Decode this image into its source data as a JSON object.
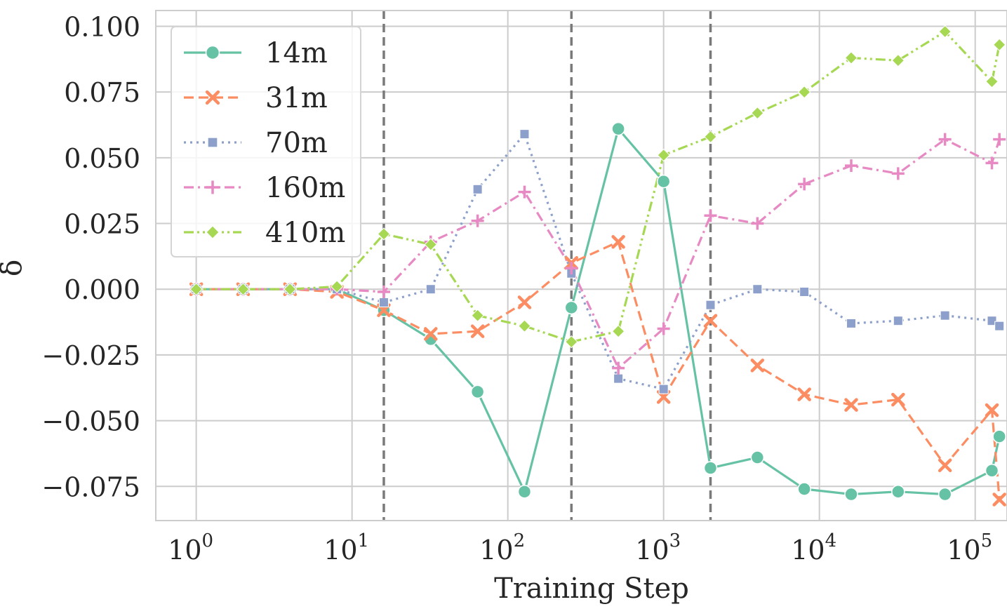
{
  "chart_data": {
    "type": "line",
    "title": "",
    "xlabel": "Training Step",
    "ylabel": "δ",
    "xscale": "log",
    "xlim": [
      0.55,
      160000
    ],
    "ylim": [
      -0.088,
      0.106
    ],
    "grid": true,
    "x_ticks": [
      {
        "base": "10",
        "exp": "0"
      },
      {
        "base": "10",
        "exp": "1"
      },
      {
        "base": "10",
        "exp": "2"
      },
      {
        "base": "10",
        "exp": "3"
      },
      {
        "base": "10",
        "exp": "4"
      },
      {
        "base": "10",
        "exp": "5"
      }
    ],
    "y_ticks": [
      "0.100",
      "0.075",
      "0.050",
      "0.025",
      "0.000",
      "−0.025",
      "−0.050",
      "−0.075"
    ],
    "y_tick_values": [
      0.1,
      0.075,
      0.05,
      0.025,
      0.0,
      -0.025,
      -0.05,
      -0.075
    ],
    "vlines": [
      16,
      256,
      2000
    ],
    "vline_color": "#7a7a7a",
    "legend_position": "top-left",
    "x": [
      1,
      2,
      4,
      8,
      16,
      32,
      64,
      128,
      256,
      512,
      1000,
      2000,
      4000,
      8000,
      16000,
      32000,
      64000,
      128000,
      143000
    ],
    "series": [
      {
        "name": "14m",
        "color": "#66c2a5",
        "dash": "solid",
        "marker": "circle",
        "values": [
          0.0,
          0.0,
          0.0,
          0.0,
          -0.008,
          -0.019,
          -0.039,
          -0.077,
          -0.007,
          0.061,
          0.041,
          -0.068,
          -0.064,
          -0.076,
          -0.078,
          -0.077,
          -0.078,
          -0.069,
          -0.056
        ]
      },
      {
        "name": "31m",
        "color": "#fc8d62",
        "dash": "dashed",
        "marker": "x",
        "values": [
          0.0,
          0.0,
          0.0,
          -0.001,
          -0.008,
          -0.017,
          -0.016,
          -0.005,
          0.01,
          0.018,
          -0.041,
          -0.012,
          -0.029,
          -0.04,
          -0.044,
          -0.042,
          -0.067,
          -0.046,
          -0.08
        ]
      },
      {
        "name": "70m",
        "color": "#8da0cb",
        "dash": "dotted",
        "marker": "square",
        "values": [
          0.0,
          0.0,
          0.0,
          0.0,
          -0.005,
          0.0,
          0.038,
          0.059,
          0.006,
          -0.034,
          -0.038,
          -0.006,
          0.0,
          -0.001,
          -0.013,
          -0.012,
          -0.01,
          -0.012,
          -0.014
        ]
      },
      {
        "name": "160m",
        "color": "#e78ac3",
        "dash": "dashdot",
        "marker": "plus",
        "values": [
          0.0,
          0.0,
          0.0,
          0.0,
          -0.001,
          0.018,
          0.026,
          0.037,
          0.008,
          -0.03,
          -0.015,
          0.028,
          0.025,
          0.04,
          0.047,
          0.044,
          0.057,
          0.048,
          0.057
        ]
      },
      {
        "name": "410m",
        "color": "#a6d854",
        "dash": "dashdotdot",
        "marker": "diamond",
        "values": [
          0.0,
          0.0,
          0.0,
          0.001,
          0.021,
          0.017,
          -0.01,
          -0.014,
          -0.02,
          -0.016,
          0.051,
          0.058,
          0.067,
          0.075,
          0.088,
          0.087,
          0.098,
          0.079,
          0.093
        ]
      }
    ]
  }
}
